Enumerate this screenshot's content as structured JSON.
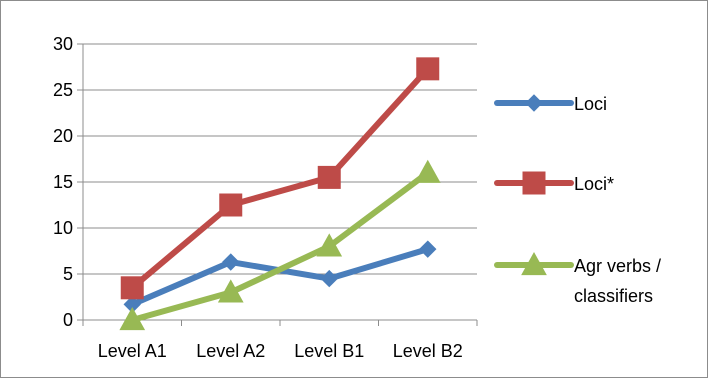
{
  "chart_data": {
    "type": "line",
    "categories": [
      "Level A1",
      "Level A2",
      "Level B1",
      "Level B2"
    ],
    "series": [
      {
        "name": "Loci",
        "values": [
          1.7,
          6.3,
          4.5,
          7.7
        ],
        "color": "#4a7ebb",
        "marker": "diamond"
      },
      {
        "name": "Loci*",
        "values": [
          3.5,
          12.5,
          15.5,
          27.3
        ],
        "color": "#be4b48",
        "marker": "square"
      },
      {
        "name": "Agr verbs / classifiers",
        "values": [
          0,
          3,
          8,
          16
        ],
        "color": "#98b954",
        "marker": "triangle"
      }
    ],
    "ylim": [
      0,
      30
    ],
    "yticks": [
      "0",
      "5",
      "10",
      "15",
      "20",
      "25",
      "30"
    ],
    "grid": "horizontal",
    "legend_position": "right",
    "legend_lines": [
      [
        "Loci"
      ],
      [
        "Loci*"
      ],
      [
        "Agr verbs /",
        "classifiers"
      ]
    ]
  }
}
